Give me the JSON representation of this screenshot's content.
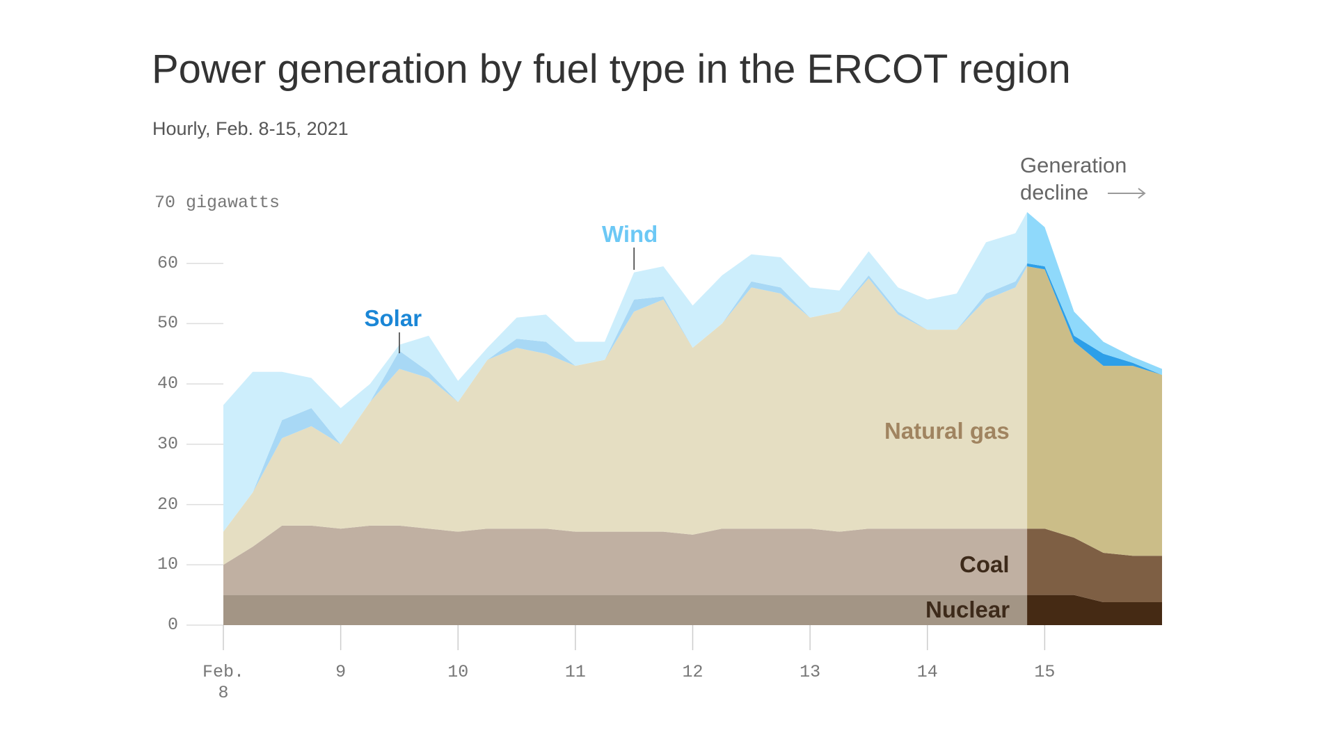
{
  "chart_data": {
    "type": "stacked_area",
    "title": "Power generation by fuel type in the ERCOT region",
    "subtitle": "Hourly, Feb. 8-15, 2021",
    "x": [
      8,
      8.25,
      8.5,
      8.75,
      9,
      9.25,
      9.5,
      9.75,
      10,
      10.25,
      10.5,
      10.75,
      11,
      11.25,
      11.5,
      11.75,
      12,
      12.25,
      12.5,
      12.75,
      13,
      13.25,
      13.5,
      13.75,
      14,
      14.25,
      14.5,
      14.75,
      14.85,
      15,
      15.25,
      15.5,
      15.75,
      16
    ],
    "series": [
      {
        "name": "Nuclear",
        "color": "#a39585",
        "highlight_color": "#452a14",
        "label_color": "#3d2a1a",
        "values": [
          5,
          5,
          5,
          5,
          5,
          5,
          5,
          5,
          5,
          5,
          5,
          5,
          5,
          5,
          5,
          5,
          5,
          5,
          5,
          5,
          5,
          5,
          5,
          5,
          5,
          5,
          5,
          5,
          5,
          5,
          5,
          3.8,
          3.8,
          3.8
        ]
      },
      {
        "name": "Coal",
        "color": "#c0b0a2",
        "highlight_color": "#7e5f44",
        "label_color": "#3d2a1a",
        "values": [
          5,
          8,
          11.5,
          11.5,
          11,
          11.5,
          11.5,
          11,
          10.5,
          11,
          11,
          11,
          10.5,
          10.5,
          10.5,
          10.5,
          10,
          11,
          11,
          11,
          11,
          10.5,
          11,
          11,
          11,
          11,
          11,
          11,
          11,
          11,
          9.5,
          8.2,
          7.7,
          7.7
        ]
      },
      {
        "name": "Natural gas",
        "color": "#e5dec2",
        "highlight_color": "#cbbd88",
        "label_color": "#a08460",
        "values": [
          5.5,
          9,
          14.5,
          16.5,
          14,
          20.5,
          26,
          25,
          21.5,
          28,
          30,
          29,
          27.5,
          28.5,
          36.5,
          38.5,
          31,
          34,
          40,
          39,
          35,
          36.5,
          41.5,
          35.5,
          33,
          33,
          38,
          40,
          43.5,
          43,
          32.5,
          31,
          31.5,
          30
        ]
      },
      {
        "name": "Solar",
        "color": "#a8d8f5",
        "highlight_color": "#2d9fe8",
        "label_color": "#1a86d6",
        "values": [
          0,
          0,
          3,
          3,
          0,
          0,
          3,
          1,
          0,
          0,
          1.5,
          2,
          0,
          0,
          2,
          0.5,
          0,
          0,
          1,
          1,
          0,
          0,
          0.5,
          0.5,
          0,
          0,
          1,
          1,
          0.5,
          0.5,
          1,
          2,
          0.5,
          0
        ]
      },
      {
        "name": "Wind",
        "color": "#cdeefc",
        "highlight_color": "#8fd9fb",
        "label_color": "#6cc8f5",
        "values": [
          21,
          20,
          8,
          5,
          6,
          3,
          1,
          6,
          3.5,
          2,
          3.5,
          4.5,
          4,
          3,
          4.5,
          5,
          7,
          8,
          4.5,
          5,
          5,
          3.5,
          4,
          4,
          5,
          6,
          8.5,
          8,
          8.5,
          6.5,
          4,
          2,
          1,
          1
        ]
      }
    ],
    "xlim": [
      8,
      16
    ],
    "xticks": [
      {
        "value": 8,
        "label": "Feb. 8"
      },
      9,
      10,
      11,
      12,
      13,
      14,
      15
    ],
    "ylim": [
      0,
      70
    ],
    "yticks": [
      0,
      10,
      20,
      30,
      40,
      50,
      60,
      {
        "value": 70,
        "label": "70 gigawatts"
      }
    ],
    "annotation": {
      "text": "Generation decline",
      "x": 14.85
    }
  }
}
